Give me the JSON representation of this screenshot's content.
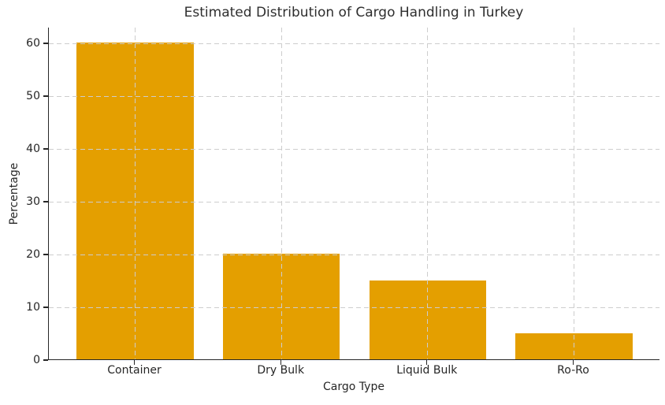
{
  "chart_data": {
    "type": "bar",
    "title": "Estimated Distribution of Cargo Handling in Turkey",
    "xlabel": "Cargo Type",
    "ylabel": "Percentage",
    "categories": [
      "Container",
      "Dry Bulk",
      "Liquid Bulk",
      "Ro-Ro"
    ],
    "values": [
      60,
      20,
      15,
      5
    ],
    "ylim": [
      0,
      63
    ],
    "yticks": [
      0,
      10,
      20,
      30,
      40,
      50,
      60
    ],
    "bar_color": "#E49F00",
    "grid": "dashed",
    "grid_color": "#cdcdcd",
    "grid_over_bars": true,
    "legend": "none"
  }
}
